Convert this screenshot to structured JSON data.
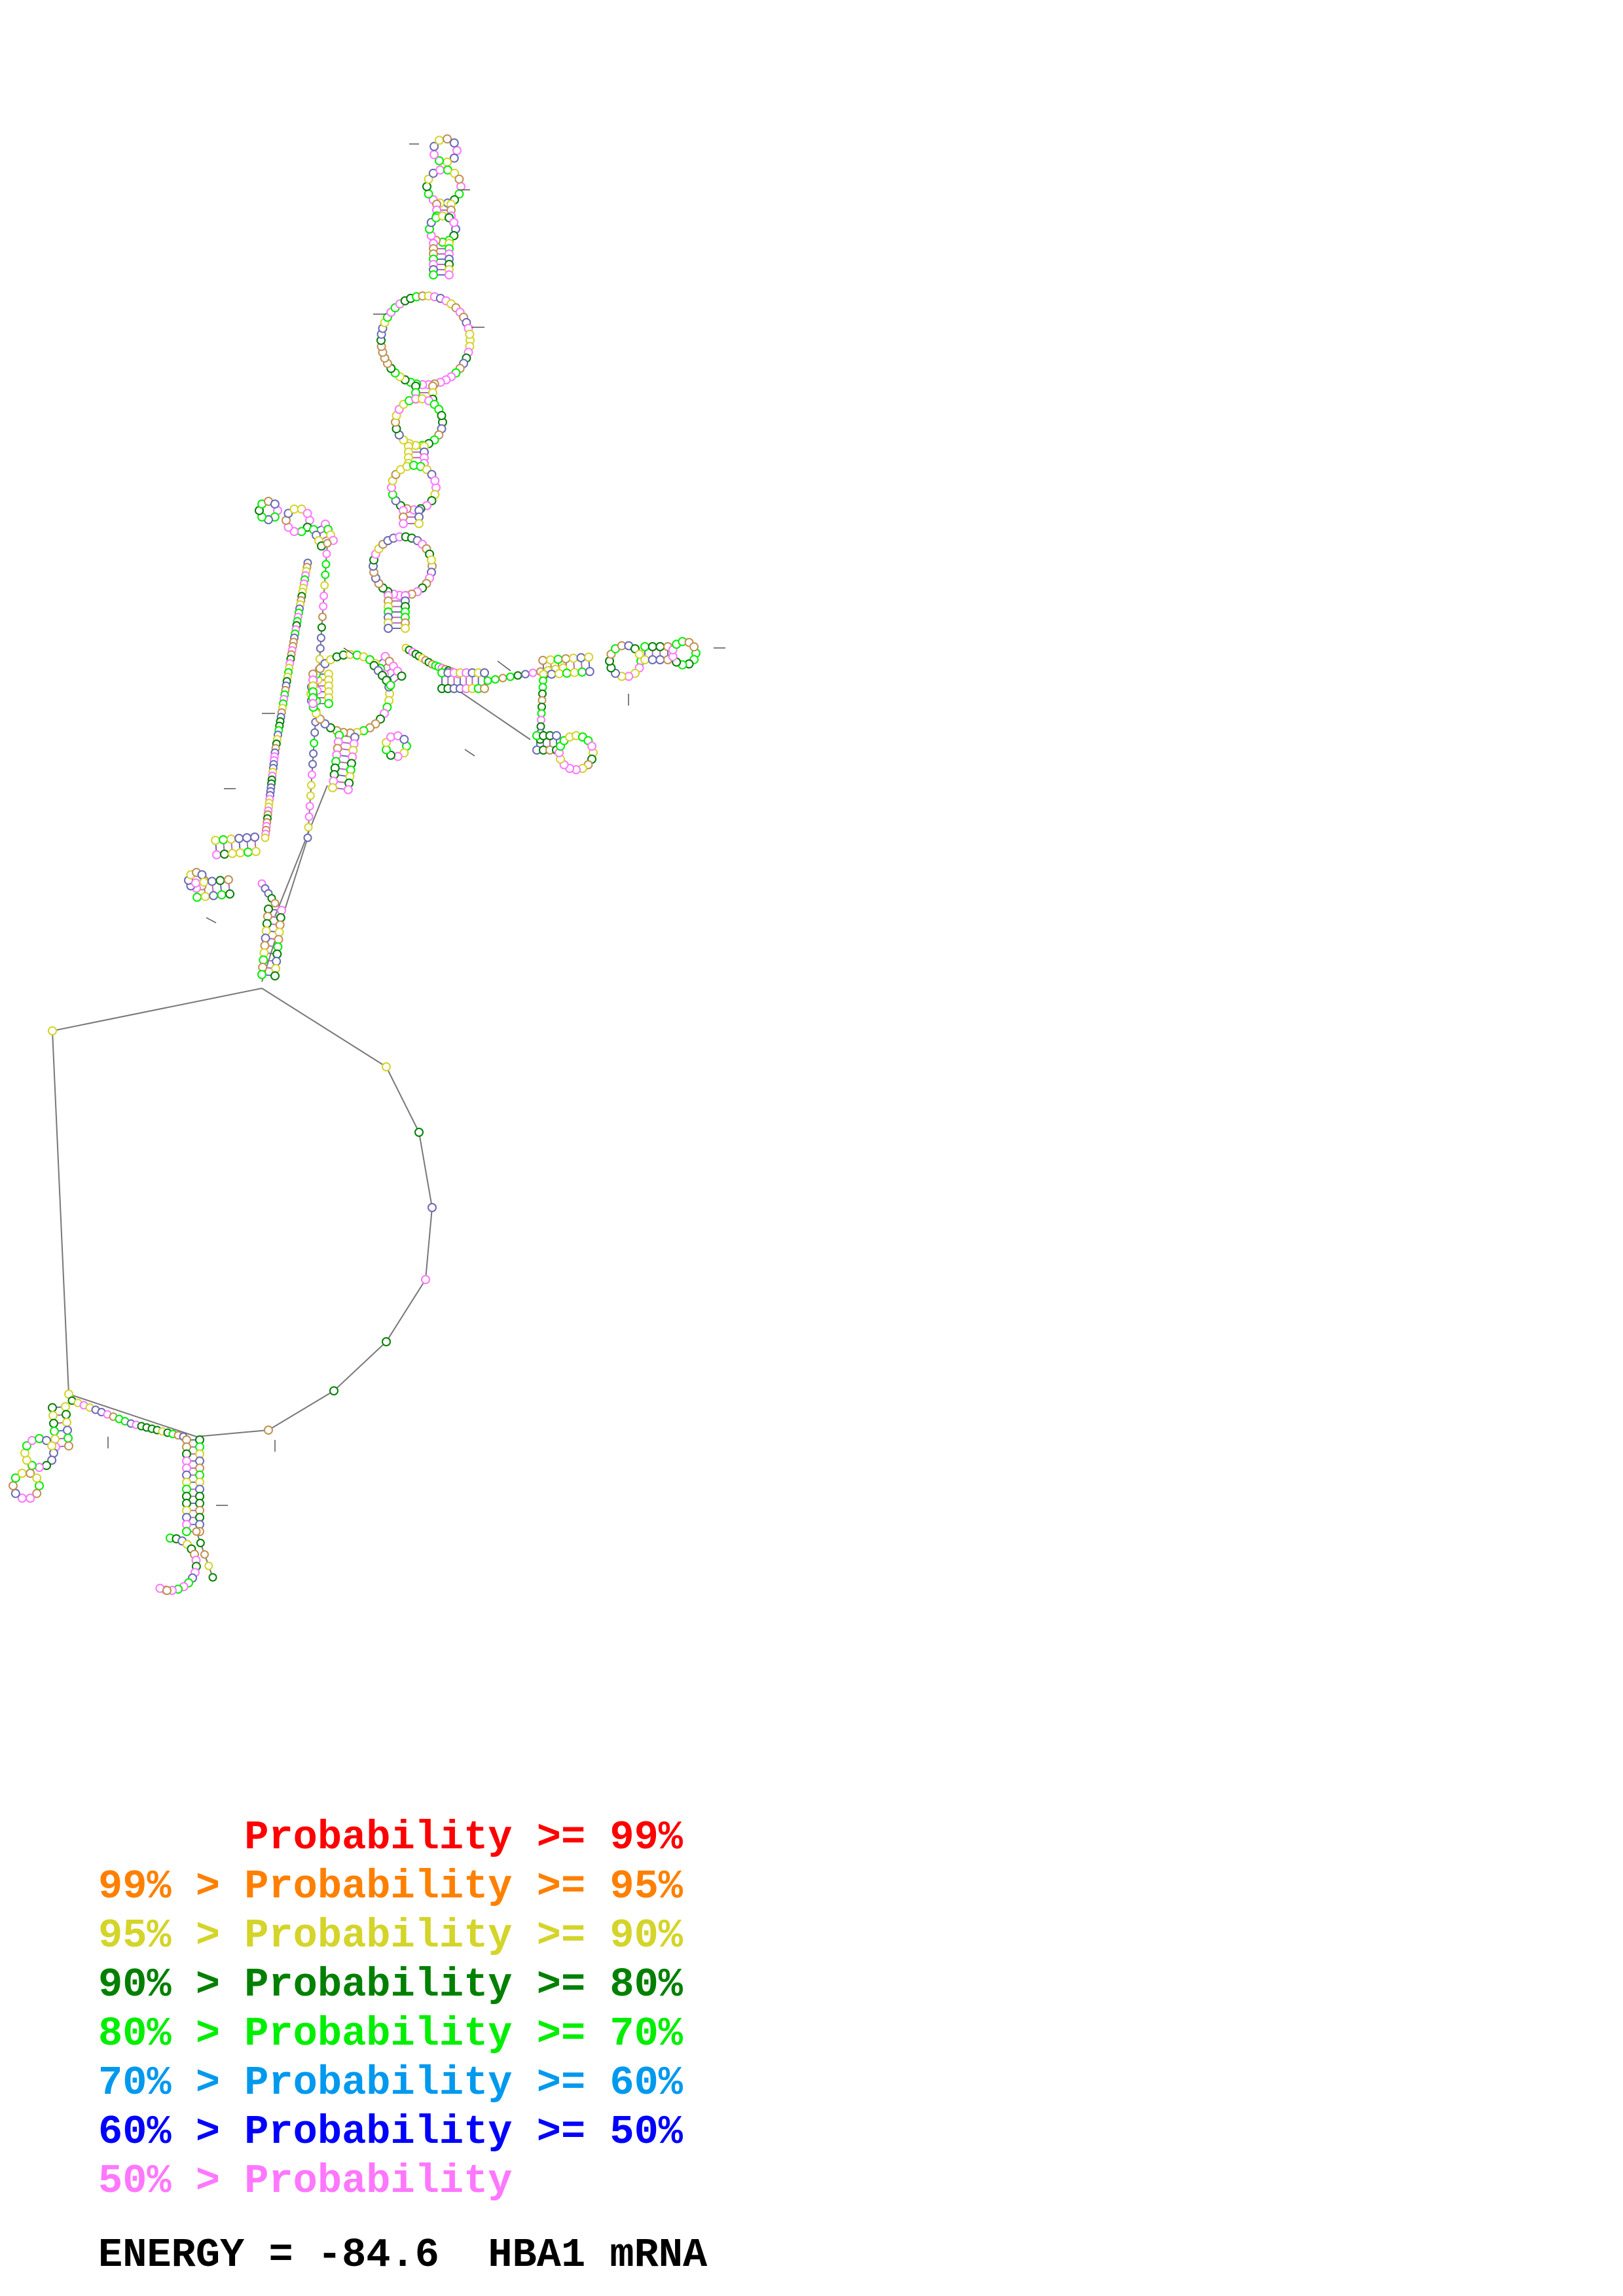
{
  "legend": [
    {
      "prefix": "",
      "label": "Probability",
      "suffix": ">= 99%",
      "color": "#ff0000"
    },
    {
      "prefix": "99% >",
      "label": "Probability",
      "suffix": ">= 95%",
      "color": "#ff8000"
    },
    {
      "prefix": "95% >",
      "label": "Probability",
      "suffix": ">= 90%",
      "color": "#d4d42a"
    },
    {
      "prefix": "90% >",
      "label": "Probability",
      "suffix": ">= 80%",
      "color": "#008000"
    },
    {
      "prefix": "80% >",
      "label": "Probability",
      "suffix": ">= 70%",
      "color": "#00ee00"
    },
    {
      "prefix": "70% >",
      "label": "Probability",
      "suffix": ">= 60%",
      "color": "#0099ee"
    },
    {
      "prefix": "60% >",
      "label": "Probability",
      "suffix": ">= 50%",
      "color": "#0000ff"
    },
    {
      "prefix": "50% >",
      "label": "Probability",
      "suffix": "",
      "color": "#ff77ff"
    }
  ],
  "energy": {
    "label": "ENERGY =",
    "value": "-84.6",
    "sequence_name": "HBA1 mRNA"
  },
  "colors": {
    "backbone": "#777777",
    "pair_high": "#ff0000",
    "pair_mid": "#6a6ab5",
    "nucleotide_default": "#b5b55a"
  }
}
